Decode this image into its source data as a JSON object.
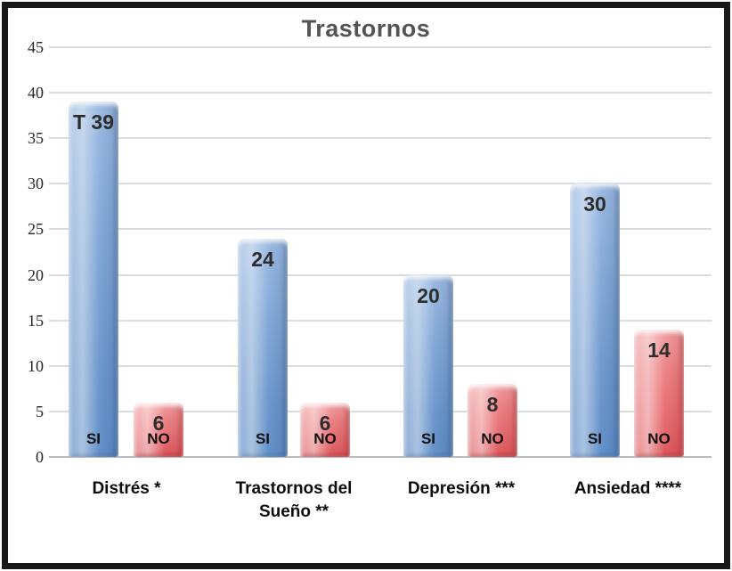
{
  "chart_data": {
    "type": "bar",
    "title": "Trastornos",
    "categories": [
      "Distrés *",
      "Trastornos del Sueño **",
      "Depresión ***",
      "Ansiedad ****"
    ],
    "series": [
      {
        "name": "SI",
        "values": [
          39,
          24,
          20,
          30
        ],
        "data_labels": [
          "T 39",
          "24",
          "20",
          "30"
        ],
        "color": "#7da4d4"
      },
      {
        "name": "NO",
        "values": [
          6,
          6,
          8,
          14
        ],
        "data_labels": [
          "6",
          "6",
          "8",
          "14"
        ],
        "color": "#e87578"
      }
    ],
    "xlabel": "",
    "ylabel": "",
    "ylim": [
      0,
      45
    ],
    "yticks": [
      0,
      5,
      10,
      15,
      20,
      25,
      30,
      35,
      40,
      45
    ],
    "grid": true,
    "legend_position": "none",
    "value_label_position": "inside-top",
    "series_name_position": "inside-base"
  },
  "colors": {
    "si_bar": "#7da4d4",
    "no_bar": "#e87578",
    "gridline": "#d9dcde",
    "baseline": "#b9bcbf",
    "title_text": "#545454",
    "axis_text": "#262626",
    "label_text": "#2d2d2d",
    "frame_border": "#191919",
    "background": "#ffffff"
  }
}
